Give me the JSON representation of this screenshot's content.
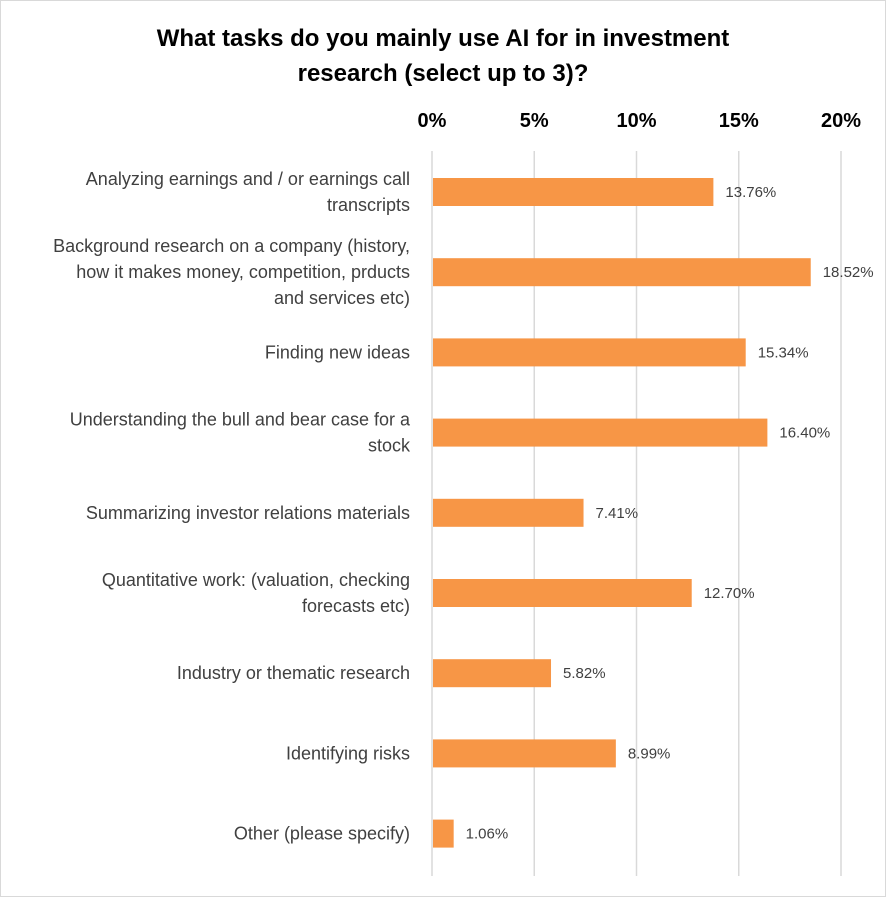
{
  "chart_data": {
    "type": "bar",
    "orientation": "horizontal",
    "title": "What tasks do you mainly use AI for in investment research (select up to 3)?",
    "title_lines": [
      "What tasks do you mainly use AI for in investment",
      "research (select up to 3)?"
    ],
    "xlabel": "",
    "ylabel": "",
    "xlim": [
      0,
      20
    ],
    "x_ticks": [
      "0%",
      "5%",
      "10%",
      "15%",
      "20%"
    ],
    "x_axis_position": "top",
    "grid": true,
    "legend": "none",
    "categories": [
      "Analyzing earnings and / or earnings call transcripts",
      "Background research on a company (history, how it makes money, competition, prducts and services etc)",
      "Finding new ideas",
      "Understanding the bull and bear case for a stock",
      "Summarizing investor relations materials",
      "Quantitative work: (valuation, checking forecasts etc)",
      "Industry or thematic research",
      "Identifying risks",
      "Other (please specify)"
    ],
    "category_lines": [
      [
        "Analyzing earnings and / or earnings call",
        "transcripts"
      ],
      [
        "Background research on a company (history,",
        "how it makes money, competition, prducts",
        "and services etc)"
      ],
      [
        "Finding new ideas"
      ],
      [
        "Understanding the bull and bear case for a",
        "stock"
      ],
      [
        "Summarizing investor relations materials"
      ],
      [
        "Quantitative work: (valuation, checking",
        "forecasts etc)"
      ],
      [
        "Industry or thematic research"
      ],
      [
        "Identifying risks"
      ],
      [
        "Other (please specify)"
      ]
    ],
    "values": [
      13.76,
      18.52,
      15.34,
      16.4,
      7.41,
      12.7,
      5.82,
      8.99,
      1.06
    ],
    "value_labels": [
      "13.76%",
      "18.52%",
      "15.34%",
      "16.40%",
      "7.41%",
      "12.70%",
      "5.82%",
      "8.99%",
      "1.06%"
    ],
    "colors": {
      "bar": "#F79646",
      "grid": "#d9d9d9",
      "title": "#000000",
      "category_text": "#404040",
      "value_text": "#404040"
    }
  }
}
